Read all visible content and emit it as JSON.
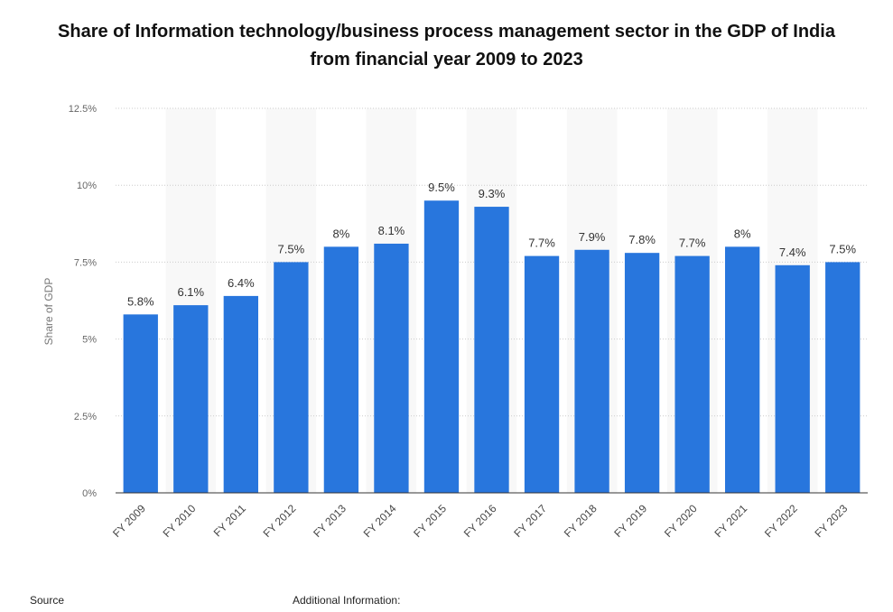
{
  "chart_data": {
    "type": "bar",
    "title": "Share of Information technology/business process management sector in the GDP of India from financial year 2009 to 2023",
    "xlabel": "",
    "ylabel": "Share of GDP",
    "ylim": [
      0,
      12.5
    ],
    "yticks": [
      "0%",
      "2.5%",
      "5%",
      "7.5%",
      "10%",
      "12.5%"
    ],
    "categories": [
      "FY 2009",
      "FY 2010",
      "FY 2011",
      "FY 2012",
      "FY 2013",
      "FY 2014",
      "FY 2015",
      "FY 2016",
      "FY 2017",
      "FY 2018",
      "FY 2019",
      "FY 2020",
      "FY 2021",
      "FY 2022",
      "FY 2023"
    ],
    "values": [
      5.8,
      6.1,
      6.4,
      7.5,
      8,
      8.1,
      9.5,
      9.3,
      7.7,
      7.9,
      7.8,
      7.7,
      8,
      7.4,
      7.5
    ],
    "data_labels": [
      "5.8%",
      "6.1%",
      "6.4%",
      "7.5%",
      "8%",
      "8.1%",
      "9.5%",
      "9.3%",
      "7.7%",
      "7.9%",
      "7.8%",
      "7.7%",
      "8%",
      "7.4%",
      "7.5%"
    ],
    "grid": true,
    "bar_color": "#2876dd"
  },
  "footer": {
    "source_label": "Source",
    "additional_info_label": "Additional Information:"
  }
}
